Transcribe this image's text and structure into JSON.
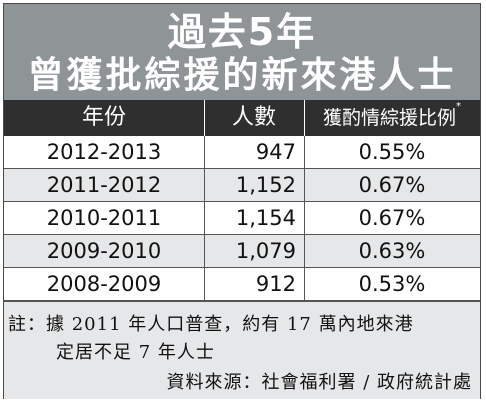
{
  "title": {
    "line1": "過去5年",
    "line2": "曾獲批綜援的新來港人士"
  },
  "table": {
    "headers": {
      "year": "年份",
      "count": "人數",
      "pct": "獲酌情綜援比例",
      "pct_mark": "*"
    },
    "rows": [
      {
        "year": "2012-2013",
        "count": "947",
        "pct": "0.55%"
      },
      {
        "year": "2011-2012",
        "count": "1,152",
        "pct": "0.67%"
      },
      {
        "year": "2010-2011",
        "count": "1,154",
        "pct": "0.67%"
      },
      {
        "year": "2009-2010",
        "count": "1,079",
        "pct": "0.63%"
      },
      {
        "year": "2008-2009",
        "count": "912",
        "pct": "0.53%"
      }
    ]
  },
  "notes": {
    "line1": "註：據 2011 年人口普查，約有 17 萬內地來港",
    "line2": "定居不足 7 年人士",
    "source": "資料來源：社會福利署 / 政府統計處"
  },
  "colors": {
    "title_band": "#8f9497",
    "header_band": "#2f2f2f",
    "alt_row": "#e6e7e8"
  }
}
